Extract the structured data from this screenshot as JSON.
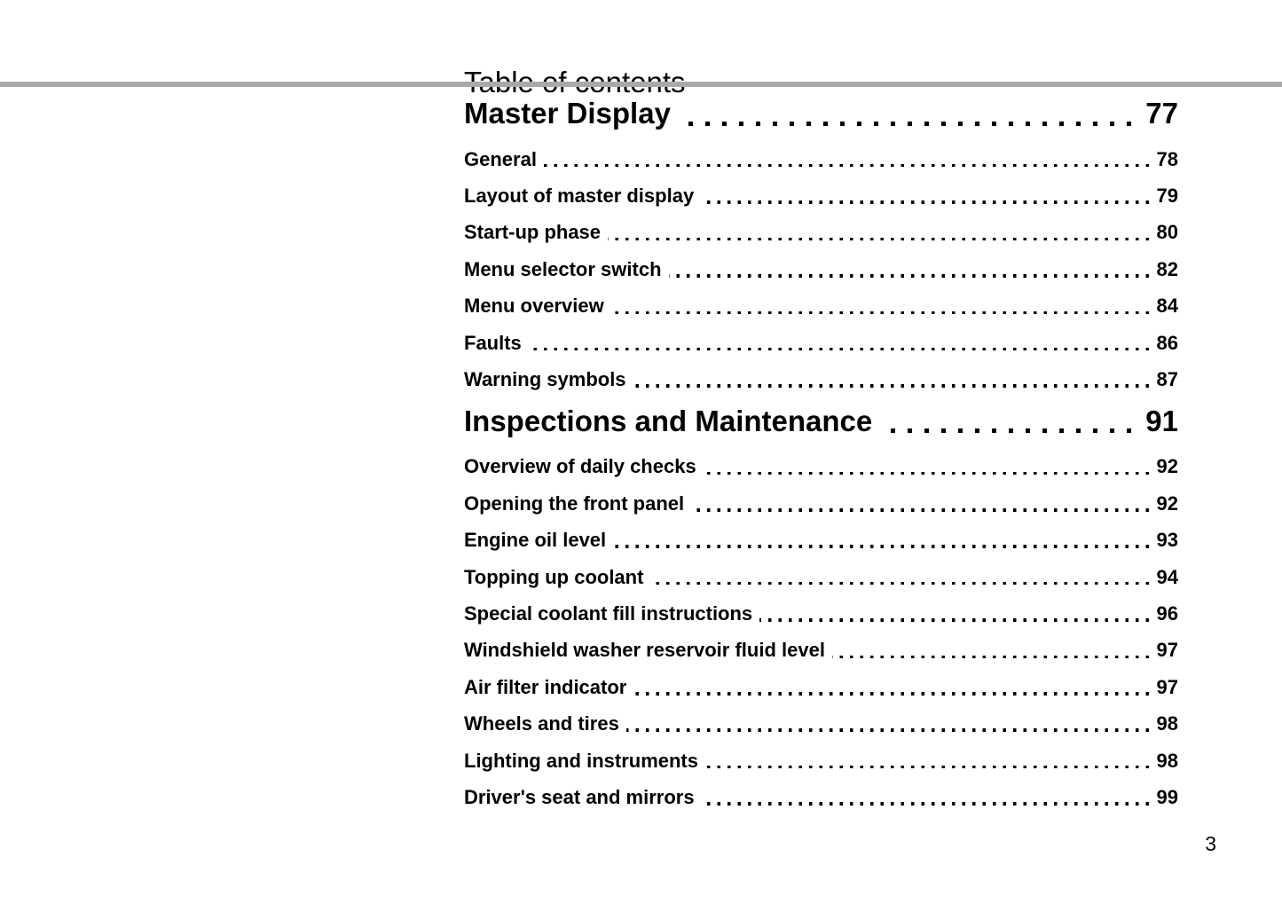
{
  "page": {
    "title": "Table of contents",
    "folio": "3"
  },
  "colors": {
    "background": "#ffffff",
    "text": "#000000",
    "rule": "#a9a9a9"
  },
  "toc": {
    "sections": [
      {
        "title": "Master Display",
        "page": "77",
        "entries": [
          {
            "label": "General",
            "page": "78"
          },
          {
            "label": "Layout of master display",
            "page": "79"
          },
          {
            "label": "Start-up phase",
            "page": "80"
          },
          {
            "label": "Menu selector switch",
            "page": "82"
          },
          {
            "label": "Menu overview",
            "page": "84"
          },
          {
            "label": "Faults",
            "page": "86"
          },
          {
            "label": "Warning symbols",
            "page": "87"
          }
        ]
      },
      {
        "title": "Inspections and Maintenance",
        "page": "91",
        "entries": [
          {
            "label": "Overview of daily checks",
            "page": "92"
          },
          {
            "label": "Opening the front panel",
            "page": "92"
          },
          {
            "label": "Engine oil level",
            "page": "93"
          },
          {
            "label": "Topping up coolant",
            "page": "94"
          },
          {
            "label": "Special coolant fill instructions",
            "page": "96"
          },
          {
            "label": "Windshield washer reservoir fluid level",
            "page": "97"
          },
          {
            "label": "Air filter indicator",
            "page": "97"
          },
          {
            "label": "Wheels and tires",
            "page": "98"
          },
          {
            "label": "Lighting and instruments",
            "page": "98"
          },
          {
            "label": "Driver's seat and mirrors",
            "page": "99"
          }
        ]
      }
    ]
  }
}
